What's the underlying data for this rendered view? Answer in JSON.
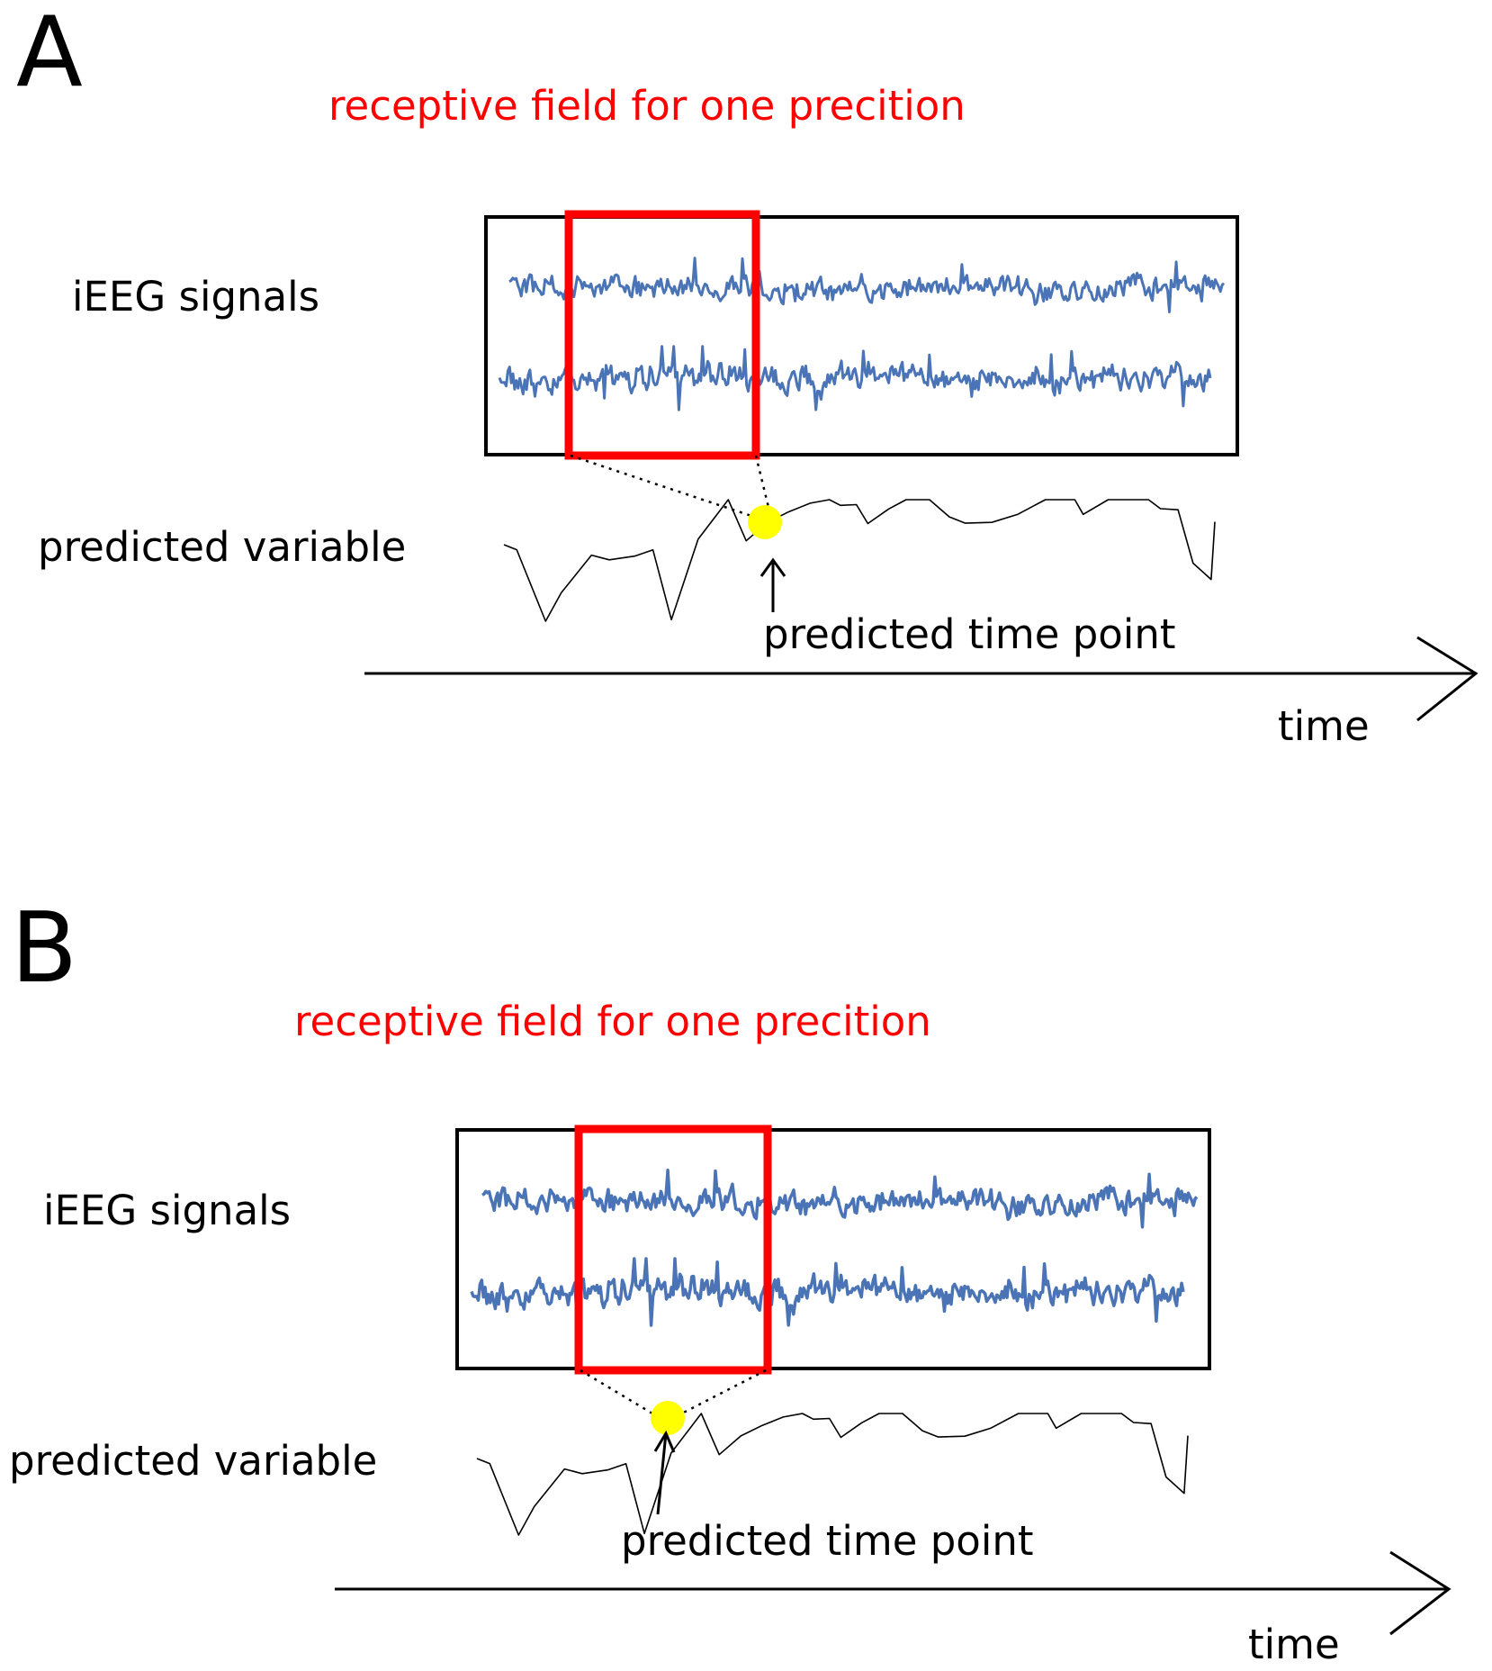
{
  "panels": [
    {
      "letter": "A",
      "title": "receptive field for one precition",
      "signals_label": "iEEG signals",
      "variable_label": "predicted variable",
      "point_label": "predicted time point",
      "axis_label": "time"
    },
    {
      "letter": "B",
      "title": "receptive field for one precition",
      "signals_label": "iEEG signals",
      "variable_label": "predicted variable",
      "point_label": "predicted time point",
      "axis_label": "time"
    }
  ],
  "colors": {
    "signal": "#4a74b5",
    "receptive_field": "#ff0000",
    "title": "#ff0000",
    "predicted_point": "#ffff00",
    "ink": "#000000"
  }
}
